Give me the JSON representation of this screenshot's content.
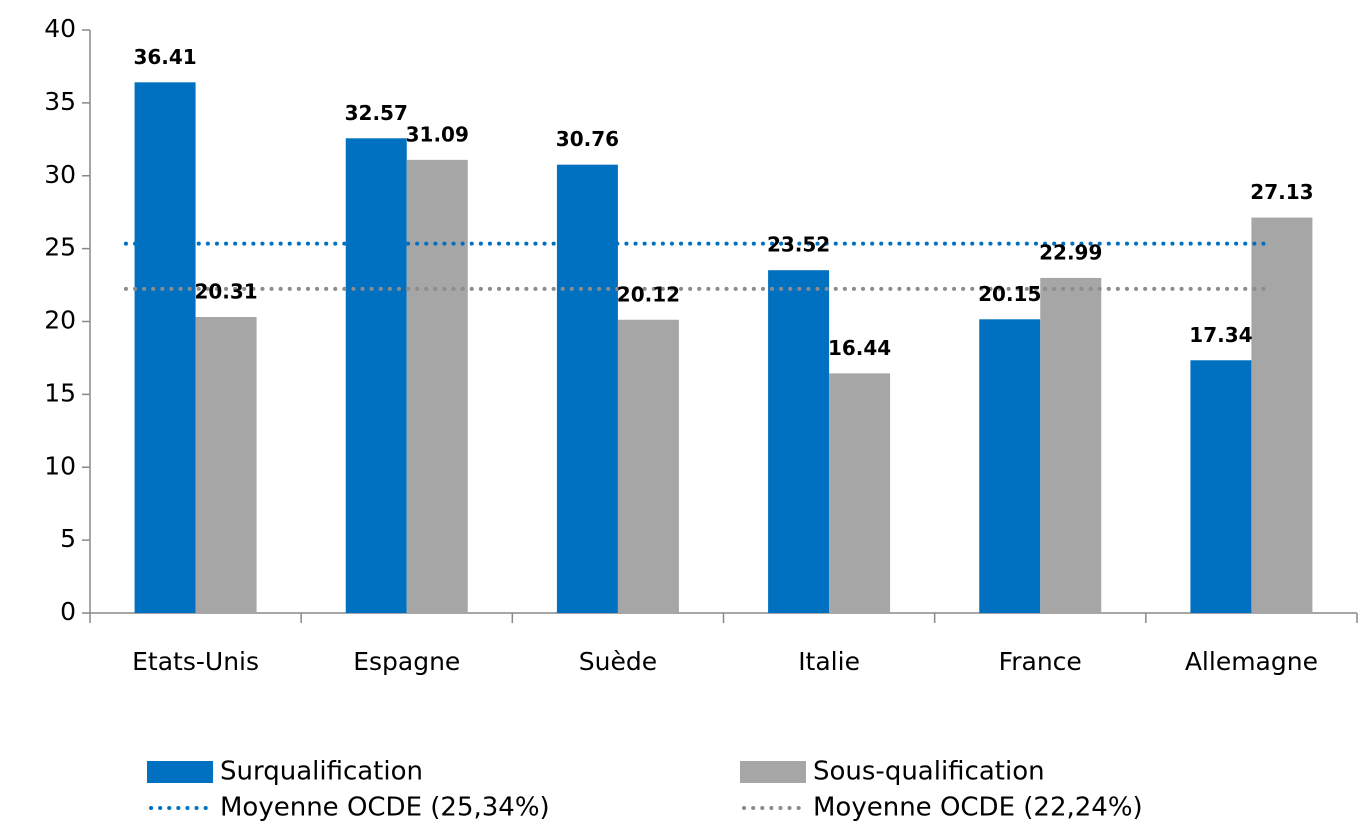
{
  "chart_data": {
    "type": "bar",
    "categories": [
      "Etats-Unis",
      "Espagne",
      "Suède",
      "Italie",
      "France",
      "Allemagne"
    ],
    "series": [
      {
        "name": "Surqualification",
        "color": "#0070c0",
        "values": [
          36.41,
          32.57,
          30.76,
          23.52,
          20.15,
          17.34
        ]
      },
      {
        "name": "Sous-qualification",
        "color": "#a6a6a6",
        "values": [
          20.31,
          31.09,
          20.12,
          16.44,
          22.99,
          27.13
        ]
      }
    ],
    "reference_lines": [
      {
        "name": "Moyenne OCDE (25,34%)",
        "color": "#0070c0",
        "value": 25.34
      },
      {
        "name": "Moyenne OCDE (22,24%)",
        "color": "#8c8c8c",
        "value": 22.24
      }
    ],
    "ylim": [
      0,
      40
    ],
    "yticks": [
      0,
      5,
      10,
      15,
      20,
      25,
      30,
      35,
      40
    ],
    "grid": false
  }
}
